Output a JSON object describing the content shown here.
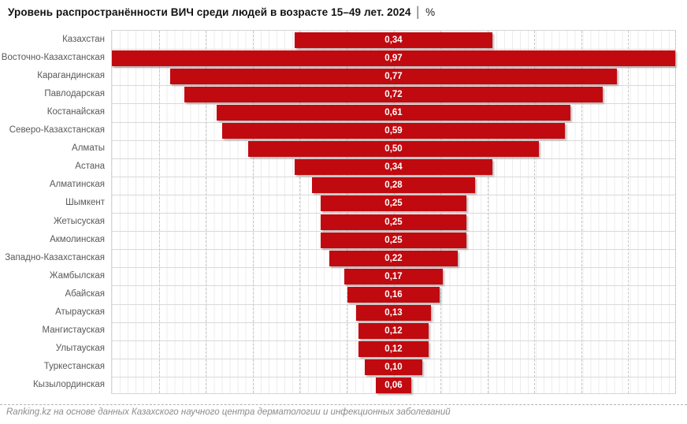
{
  "title": {
    "main": "Уровень распространённости ВИЧ среди людей в возрасте 15–49 лет. 2024",
    "separator": "│",
    "unit": "%"
  },
  "footer": {
    "text": "Ranking.kz на основе данных Казахского научного центра дерматологии и инфекционных заболеваний"
  },
  "colors": {
    "bar": "#c00a0f",
    "bar_label": "#ffffff",
    "axis_label": "#595959",
    "grid_minor": "#ededed",
    "grid_major": "#c6c6c6",
    "row_line": "#d9d9d9",
    "footer_text": "#8c8c8c"
  },
  "chart_data": {
    "type": "bar",
    "orientation": "horizontal-centered",
    "title": "Уровень распространённости ВИЧ среди людей в возрасте 15–49 лет. 2024 │ %",
    "xlabel": "",
    "ylabel": "",
    "xlim": [
      0,
      0.97
    ],
    "grid": true,
    "legend": false,
    "categories": [
      "Казахстан",
      "Восточно-Казахстанская",
      "Карагандинская",
      "Павлодарская",
      "Костанайская",
      "Северо-Казахстанская",
      "Алматы",
      "Астана",
      "Алматинская",
      "Шымкент",
      "Жетысуская",
      "Акмолинская",
      "Западно-Казахстанская",
      "Жамбылская",
      "Абайская",
      "Атырауская",
      "Мангистауская",
      "Улытауская",
      "Туркестанская",
      "Кызылординская"
    ],
    "values": [
      0.34,
      0.97,
      0.77,
      0.72,
      0.61,
      0.59,
      0.5,
      0.34,
      0.28,
      0.25,
      0.25,
      0.25,
      0.22,
      0.17,
      0.16,
      0.13,
      0.12,
      0.12,
      0.1,
      0.06
    ],
    "value_labels": [
      "0,34",
      "0,97",
      "0,77",
      "0,72",
      "0,61",
      "0,59",
      "0,50",
      "0,34",
      "0,28",
      "0,25",
      "0,25",
      "0,25",
      "0,22",
      "0,17",
      "0,16",
      "0,13",
      "0,12",
      "0,12",
      "0,10",
      "0,06"
    ]
  }
}
